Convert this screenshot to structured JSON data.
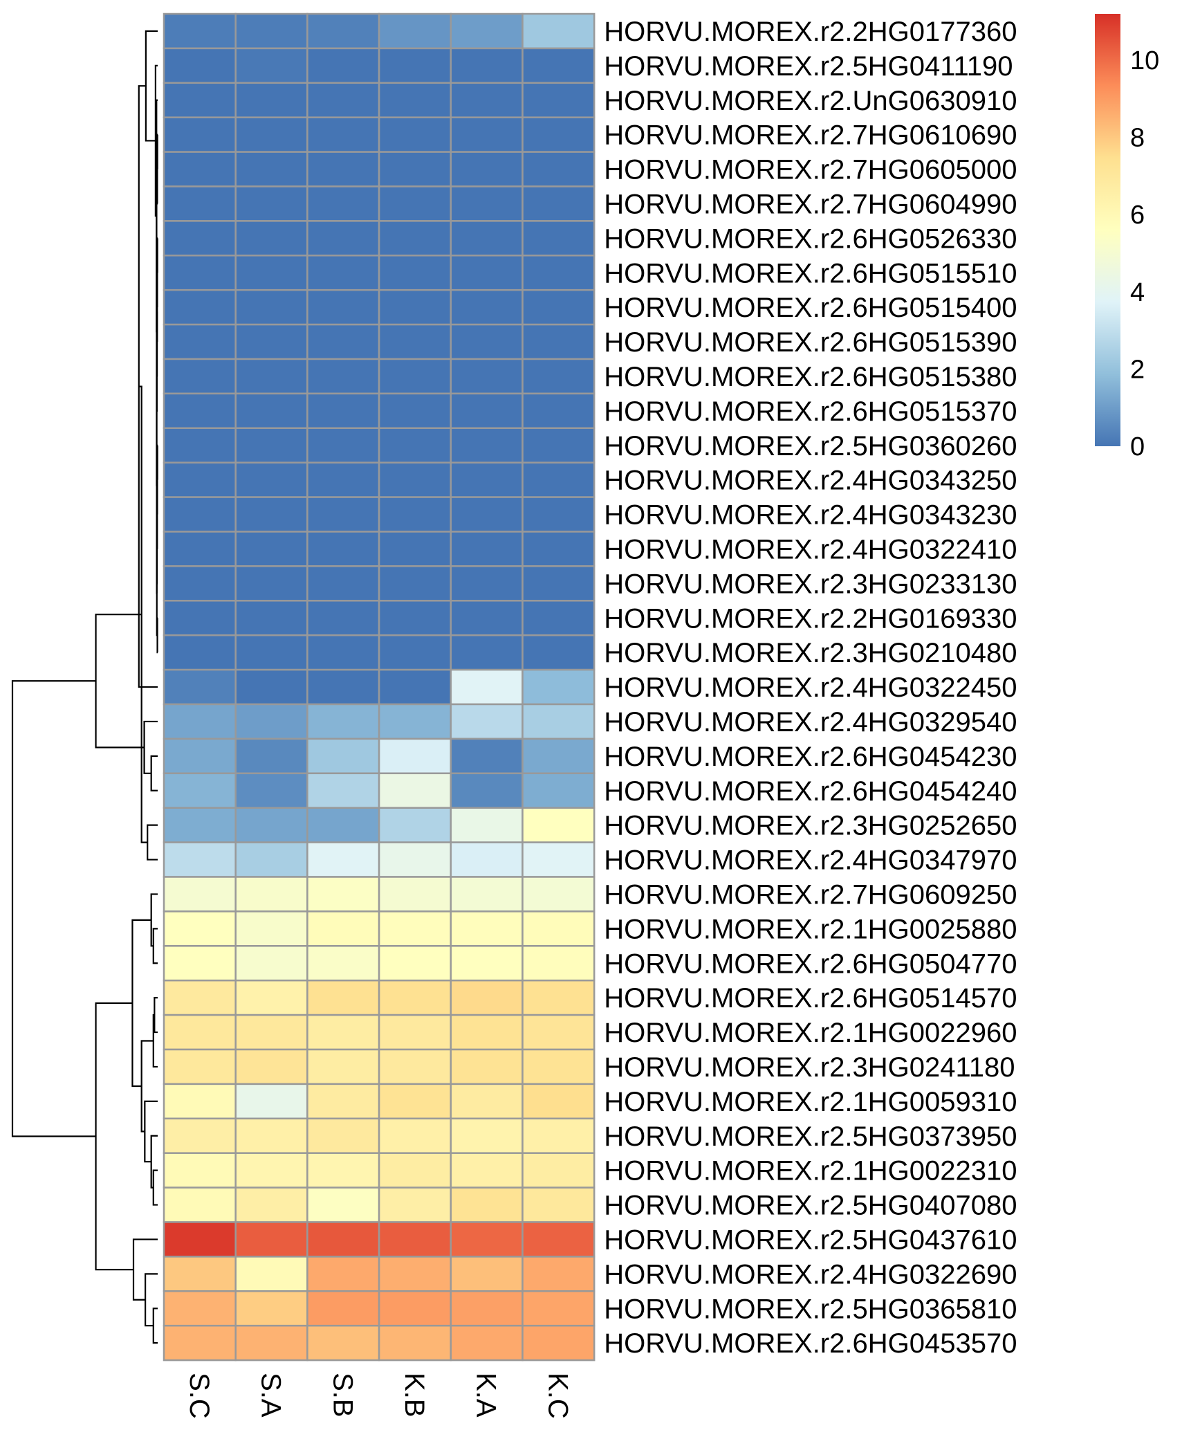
{
  "chart_data": {
    "type": "heatmap",
    "title": "",
    "xlabel": "",
    "ylabel": "",
    "columns": [
      "S.C",
      "S.A",
      "S.B",
      "K.B",
      "K.A",
      "K.C"
    ],
    "rows": [
      "HORVU.MOREX.r2.2HG0177360",
      "HORVU.MOREX.r2.5HG0411190",
      "HORVU.MOREX.r2.UnG0630910",
      "HORVU.MOREX.r2.7HG0610690",
      "HORVU.MOREX.r2.7HG0605000",
      "HORVU.MOREX.r2.7HG0604990",
      "HORVU.MOREX.r2.6HG0526330",
      "HORVU.MOREX.r2.6HG0515510",
      "HORVU.MOREX.r2.6HG0515400",
      "HORVU.MOREX.r2.6HG0515390",
      "HORVU.MOREX.r2.6HG0515380",
      "HORVU.MOREX.r2.6HG0515370",
      "HORVU.MOREX.r2.5HG0360260",
      "HORVU.MOREX.r2.4HG0343250",
      "HORVU.MOREX.r2.4HG0343230",
      "HORVU.MOREX.r2.4HG0322410",
      "HORVU.MOREX.r2.3HG0233130",
      "HORVU.MOREX.r2.2HG0169330",
      "HORVU.MOREX.r2.3HG0210480",
      "HORVU.MOREX.r2.4HG0322450",
      "HORVU.MOREX.r2.4HG0329540",
      "HORVU.MOREX.r2.6HG0454230",
      "HORVU.MOREX.r2.6HG0454240",
      "HORVU.MOREX.r2.3HG0252650",
      "HORVU.MOREX.r2.4HG0347970",
      "HORVU.MOREX.r2.7HG0609250",
      "HORVU.MOREX.r2.1HG0025880",
      "HORVU.MOREX.r2.6HG0504770",
      "HORVU.MOREX.r2.6HG0514570",
      "HORVU.MOREX.r2.1HG0022960",
      "HORVU.MOREX.r2.3HG0241180",
      "HORVU.MOREX.r2.1HG0059310",
      "HORVU.MOREX.r2.5HG0373950",
      "HORVU.MOREX.r2.1HG0022310",
      "HORVU.MOREX.r2.5HG0407080",
      "HORVU.MOREX.r2.5HG0437610",
      "HORVU.MOREX.r2.4HG0322690",
      "HORVU.MOREX.r2.5HG0365810",
      "HORVU.MOREX.r2.6HG0453570"
    ],
    "values": [
      [
        0.2,
        0.2,
        0.3,
        0.8,
        1.0,
        2.2
      ],
      [
        0,
        0.1,
        0,
        0,
        0,
        0
      ],
      [
        0,
        0,
        0,
        0,
        0,
        0
      ],
      [
        0,
        0,
        0,
        0,
        0,
        0
      ],
      [
        0,
        0,
        0,
        0,
        0,
        0
      ],
      [
        0,
        0,
        0,
        0,
        0,
        0
      ],
      [
        0,
        0,
        0,
        0,
        0,
        0
      ],
      [
        0,
        0,
        0,
        0,
        0,
        0
      ],
      [
        0,
        0,
        0,
        0,
        0,
        0
      ],
      [
        0,
        0,
        0,
        0,
        0,
        0
      ],
      [
        0,
        0,
        0,
        0,
        0,
        0
      ],
      [
        0,
        0,
        0,
        0,
        0,
        0
      ],
      [
        0,
        0,
        0,
        0,
        0,
        0
      ],
      [
        0,
        0,
        0,
        0,
        0,
        0
      ],
      [
        0,
        0,
        0,
        0,
        0,
        0
      ],
      [
        0,
        0,
        0,
        0,
        0,
        0
      ],
      [
        0,
        0,
        0,
        0,
        0,
        0
      ],
      [
        0,
        0,
        0,
        0,
        0,
        0
      ],
      [
        0,
        0,
        0,
        0,
        0,
        0
      ],
      [
        0.3,
        0,
        0,
        0,
        3.8,
        1.8
      ],
      [
        1.2,
        1.0,
        1.6,
        1.6,
        2.8,
        2.4
      ],
      [
        1.3,
        0.5,
        2.2,
        3.6,
        0.3,
        1.3
      ],
      [
        1.6,
        0.6,
        2.6,
        4.4,
        0.5,
        1.4
      ],
      [
        1.4,
        1.2,
        1.2,
        2.6,
        4.3,
        5.6
      ],
      [
        2.9,
        2.4,
        3.8,
        4.2,
        3.6,
        3.8
      ],
      [
        5.0,
        5.2,
        5.4,
        5.0,
        4.9,
        4.9
      ],
      [
        5.6,
        5.2,
        5.8,
        5.7,
        5.7,
        5.8
      ],
      [
        5.6,
        5.1,
        5.3,
        5.6,
        5.6,
        5.7
      ],
      [
        6.9,
        6.4,
        7.4,
        7.4,
        7.6,
        7.4
      ],
      [
        7.0,
        7.0,
        6.7,
        6.9,
        7.3,
        7.2
      ],
      [
        7.0,
        7.2,
        6.7,
        6.9,
        7.3,
        7.3
      ],
      [
        5.9,
        4.2,
        6.8,
        7.3,
        6.8,
        7.5
      ],
      [
        6.6,
        6.5,
        6.9,
        6.5,
        6.3,
        6.5
      ],
      [
        5.9,
        6.2,
        6.2,
        6.7,
        6.5,
        6.7
      ],
      [
        5.9,
        6.6,
        5.5,
        6.6,
        7.3,
        7.0
      ],
      [
        11.0,
        10.3,
        10.4,
        10.3,
        10.1,
        10.2
      ],
      [
        8.0,
        5.9,
        8.7,
        8.6,
        8.2,
        8.7
      ],
      [
        8.5,
        7.9,
        9.0,
        9.0,
        8.9,
        8.8
      ],
      [
        8.5,
        8.5,
        8.2,
        8.4,
        8.7,
        8.8
      ]
    ],
    "color_scale": {
      "min": 0,
      "max": 11.2,
      "stops": [
        "#4575b4",
        "#91bfdb",
        "#e0f3f8",
        "#ffffbf",
        "#fee090",
        "#fc8d59",
        "#d73027"
      ],
      "ticks": [
        "0",
        "2",
        "4",
        "6",
        "8",
        "10"
      ]
    },
    "legend": "right",
    "cell_border_color": "#999999",
    "row_dendrogram": {
      "leaf_order": [
        0,
        1,
        2,
        3,
        4,
        5,
        6,
        7,
        8,
        9,
        10,
        11,
        12,
        13,
        14,
        15,
        16,
        17,
        18,
        19,
        20,
        21,
        22,
        23,
        24,
        25,
        26,
        27,
        28,
        29,
        30,
        31,
        32,
        33,
        34,
        35,
        36,
        37,
        38
      ],
      "merges": [
        [
          -4,
          -5,
          0.05
        ],
        [
          1,
          -6,
          0.08
        ],
        [
          -7,
          -8,
          0.05
        ],
        [
          3,
          -9,
          0.08
        ],
        [
          4,
          -10,
          0.1
        ],
        [
          5,
          -11,
          0.12
        ],
        [
          6,
          -12,
          0.15
        ],
        [
          -13,
          -14,
          0.05
        ],
        [
          8,
          -15,
          0.08
        ],
        [
          9,
          -16,
          0.1
        ],
        [
          10,
          -17,
          0.13
        ],
        [
          -18,
          -19,
          0.06
        ],
        [
          11,
          12,
          0.16
        ],
        [
          7,
          13,
          0.18
        ],
        [
          2,
          14,
          0.2
        ],
        [
          -3,
          15,
          0.22
        ],
        [
          -2,
          16,
          0.4
        ],
        [
          -1,
          17,
          2.2
        ],
        [
          -20,
          18,
          3.5
        ],
        [
          -22,
          -23,
          1.2
        ],
        [
          -24,
          -25,
          1.9
        ],
        [
          -21,
          20,
          2.5
        ],
        [
          19,
          21,
          3.0
        ],
        [
          22,
          23,
          11.5
        ],
        [
          -27,
          -28,
          0.8
        ],
        [
          -26,
          25,
          1.2
        ],
        [
          -29,
          -30,
          0.6
        ],
        [
          27,
          -31,
          0.8
        ],
        [
          -34,
          -35,
          0.8
        ],
        [
          -33,
          29,
          1.2
        ],
        [
          -32,
          30,
          2.4
        ],
        [
          28,
          31,
          3.0
        ],
        [
          26,
          32,
          4.7
        ],
        [
          -38,
          -39,
          0.8
        ],
        [
          -37,
          34,
          2.3
        ],
        [
          -36,
          35,
          4.5
        ],
        [
          33,
          36,
          11.5
        ],
        [
          24,
          37,
          27.0
        ]
      ]
    }
  }
}
